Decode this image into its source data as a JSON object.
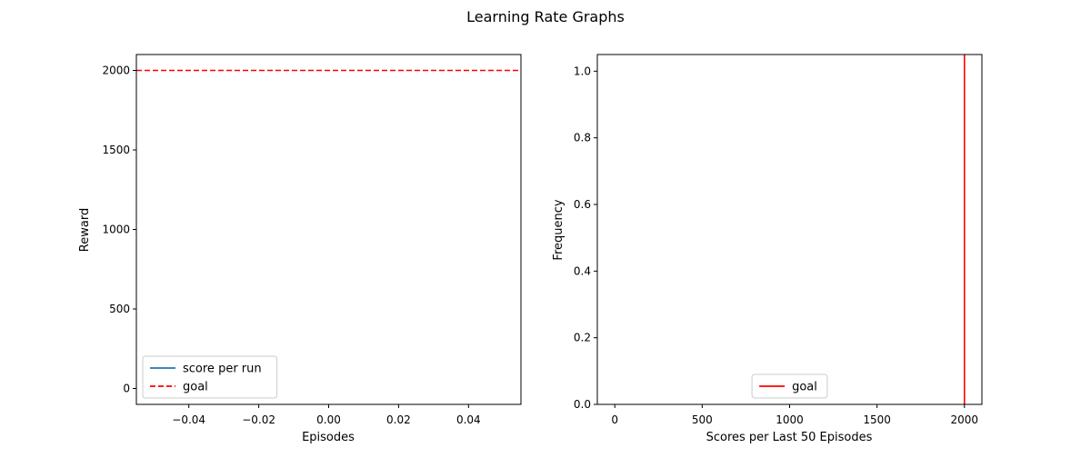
{
  "figure": {
    "title": "Learning Rate Graphs"
  },
  "chart_data": [
    {
      "type": "line",
      "title": "",
      "xlabel": "Episodes",
      "ylabel": "Reward",
      "xlim": [
        -0.055,
        0.055
      ],
      "ylim": [
        -100,
        2100
      ],
      "xticks": [
        -0.04,
        -0.02,
        0.0,
        0.02,
        0.04
      ],
      "xtick_labels": [
        "−0.04",
        "−0.02",
        "0.00",
        "0.02",
        "0.04"
      ],
      "yticks": [
        0,
        500,
        1000,
        1500,
        2000
      ],
      "ytick_labels": [
        "0",
        "500",
        "1000",
        "1500",
        "2000"
      ],
      "grid": false,
      "legend": {
        "placement": "lower-left"
      },
      "series": [
        {
          "name": "score per run",
          "x": [],
          "y": [],
          "color": "#1f77b4",
          "style": "solid"
        },
        {
          "name": "goal",
          "kind": "hline",
          "y": 2000,
          "color": "#ff0000",
          "style": "dashed"
        }
      ]
    },
    {
      "type": "bar",
      "title": "",
      "xlabel": "Scores per Last 50 Episodes",
      "ylabel": "Frequency",
      "xlim": [
        -100,
        2100
      ],
      "ylim": [
        0,
        1.05
      ],
      "xticks": [
        0,
        500,
        1000,
        1500,
        2000
      ],
      "xtick_labels": [
        "0",
        "500",
        "1000",
        "1500",
        "2000"
      ],
      "yticks": [
        0,
        0.2,
        0.4,
        0.6,
        0.8,
        1.0
      ],
      "ytick_labels": [
        "0.0",
        "0.2",
        "0.4",
        "0.6",
        "0.8",
        "1.0"
      ],
      "grid": false,
      "legend": {
        "placement": "lower-center"
      },
      "series": [
        {
          "name": "goal",
          "kind": "vline",
          "x": 2000,
          "color": "#ff0000",
          "style": "solid"
        }
      ]
    }
  ]
}
